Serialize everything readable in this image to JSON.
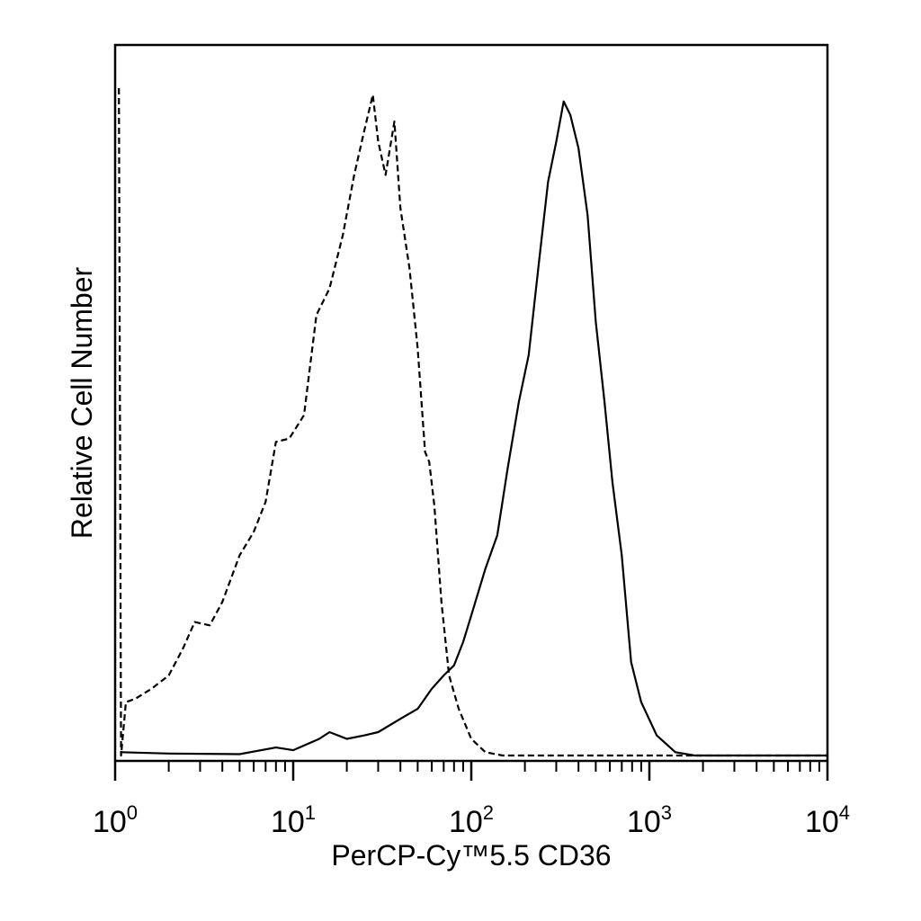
{
  "chart_data": {
    "type": "line",
    "title": "",
    "xlabel": "PerCP-Cy™5.5 CD36",
    "ylabel": "Relative Cell Number",
    "x_scale": "log",
    "xlim": [
      1,
      10000
    ],
    "ylim": [
      0,
      100
    ],
    "grid": false,
    "legend": "none",
    "x_ticks": [
      {
        "base": "10",
        "exp": "0",
        "value": 1
      },
      {
        "base": "10",
        "exp": "1",
        "value": 10
      },
      {
        "base": "10",
        "exp": "2",
        "value": 100
      },
      {
        "base": "10",
        "exp": "3",
        "value": 1000
      },
      {
        "base": "10",
        "exp": "4",
        "value": 10000
      }
    ],
    "series": [
      {
        "style": "dashed",
        "color": "#000000",
        "points": [
          [
            1.05,
            100
          ],
          [
            1.08,
            0
          ],
          [
            1.15,
            8
          ],
          [
            1.3,
            8.5
          ],
          [
            1.6,
            10
          ],
          [
            2.0,
            12
          ],
          [
            2.4,
            16
          ],
          [
            2.8,
            20
          ],
          [
            3.4,
            19.5
          ],
          [
            4.0,
            23
          ],
          [
            5.0,
            30
          ],
          [
            6.0,
            33.5
          ],
          [
            7.0,
            38
          ],
          [
            8.0,
            47
          ],
          [
            9.5,
            47.5
          ],
          [
            11.5,
            51
          ],
          [
            13.5,
            66
          ],
          [
            16,
            70
          ],
          [
            19,
            78
          ],
          [
            22,
            87
          ],
          [
            25,
            93.5
          ],
          [
            28,
            99
          ],
          [
            30,
            92
          ],
          [
            33,
            87
          ],
          [
            37,
            95
          ],
          [
            40,
            82
          ],
          [
            45,
            73
          ],
          [
            50,
            61
          ],
          [
            55,
            45.5
          ],
          [
            58,
            44
          ],
          [
            62,
            37.5
          ],
          [
            68,
            23
          ],
          [
            75,
            12
          ],
          [
            85,
            7
          ],
          [
            100,
            2.5
          ],
          [
            120,
            0.5
          ],
          [
            150,
            0
          ],
          [
            10000,
            0
          ]
        ]
      },
      {
        "style": "solid",
        "color": "#000000",
        "points": [
          [
            1.08,
            0.5
          ],
          [
            2.0,
            0.3
          ],
          [
            5.0,
            0.2
          ],
          [
            8.0,
            1.2
          ],
          [
            10,
            0.8
          ],
          [
            14,
            2.5
          ],
          [
            16,
            3.5
          ],
          [
            20,
            2.5
          ],
          [
            25,
            3.0
          ],
          [
            30,
            3.5
          ],
          [
            40,
            5.5
          ],
          [
            50,
            7.0
          ],
          [
            60,
            10
          ],
          [
            70,
            12
          ],
          [
            80,
            13.5
          ],
          [
            90,
            17
          ],
          [
            100,
            21
          ],
          [
            120,
            28
          ],
          [
            140,
            33
          ],
          [
            160,
            43
          ],
          [
            185,
            53
          ],
          [
            210,
            60
          ],
          [
            240,
            74
          ],
          [
            270,
            86
          ],
          [
            300,
            92
          ],
          [
            330,
            98
          ],
          [
            360,
            96
          ],
          [
            400,
            91
          ],
          [
            450,
            81
          ],
          [
            500,
            65
          ],
          [
            560,
            53
          ],
          [
            620,
            41
          ],
          [
            700,
            30
          ],
          [
            790,
            14
          ],
          [
            900,
            8
          ],
          [
            1100,
            3
          ],
          [
            1400,
            0.5
          ],
          [
            1800,
            0
          ],
          [
            10000,
            0
          ]
        ]
      }
    ]
  }
}
